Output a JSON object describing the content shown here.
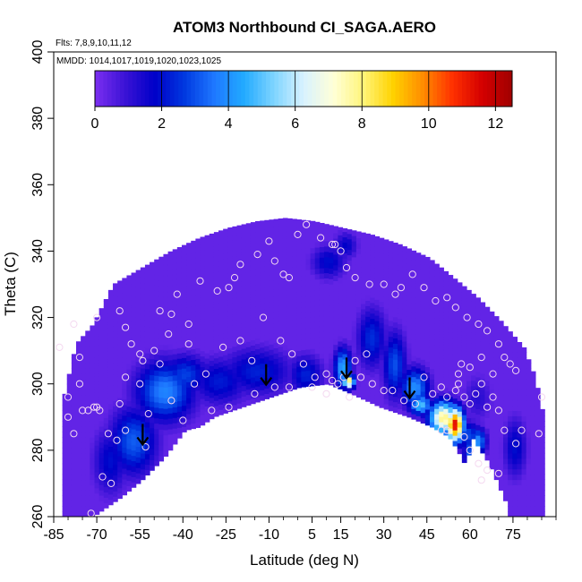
{
  "chart_data": {
    "type": "heatmap",
    "title": "ATOM3 Northbound CI_SAGA.AERO",
    "subtitle_flights": "Flts: 7,8,9,10,11,12",
    "subtitle_dates": "MMDD: 1014,1017,1019,1020,1023,1025",
    "xlabel": "Latitude (deg N)",
    "ylabel": "Theta (C)",
    "xlim": [
      -85,
      90
    ],
    "ylim": [
      260,
      400
    ],
    "x_ticks": [
      "-85",
      "-70",
      "-55",
      "-40",
      "-25",
      "-10",
      "5",
      "15",
      "30",
      "45",
      "60",
      "75"
    ],
    "y_ticks": [
      "260",
      "280",
      "300",
      "320",
      "340",
      "360",
      "380",
      "400"
    ],
    "colorbar": {
      "range": [
        0,
        12.5
      ],
      "tick_labels": [
        "0",
        "2",
        "4",
        "6",
        "8",
        "10",
        "12"
      ],
      "colors": [
        "#7b2ff0",
        "#3b13d6",
        "#0000c8",
        "#0038e0",
        "#1e78ff",
        "#22aaff",
        "#7ed4ff",
        "#d8f2ff",
        "#ffffd8",
        "#fff57a",
        "#ffd200",
        "#ff8c00",
        "#ff3000",
        "#d40000",
        "#a00000"
      ]
    },
    "domain_top": [
      [
        -82,
        297
      ],
      [
        -78,
        312
      ],
      [
        -72,
        318
      ],
      [
        -65,
        330
      ],
      [
        -55,
        335
      ],
      [
        -45,
        340
      ],
      [
        -35,
        344
      ],
      [
        -25,
        347
      ],
      [
        -15,
        349
      ],
      [
        -5,
        350
      ],
      [
        5,
        349
      ],
      [
        15,
        347
      ],
      [
        25,
        345
      ],
      [
        35,
        342
      ],
      [
        45,
        338
      ],
      [
        55,
        331
      ],
      [
        62,
        326
      ],
      [
        70,
        319
      ],
      [
        78,
        311
      ],
      [
        82,
        302
      ],
      [
        85,
        290
      ]
    ],
    "domain_bottom": [
      [
        -72,
        260
      ],
      [
        -62,
        266
      ],
      [
        -55,
        271
      ],
      [
        -47,
        278
      ],
      [
        -40,
        286
      ],
      [
        -35,
        287
      ],
      [
        -30,
        290
      ],
      [
        -20,
        293
      ],
      [
        -10,
        296
      ],
      [
        0,
        299
      ],
      [
        10,
        300
      ],
      [
        18,
        297
      ],
      [
        28,
        293
      ],
      [
        38,
        290
      ],
      [
        46,
        287
      ],
      [
        52,
        284
      ],
      [
        55,
        280
      ],
      [
        58,
        275
      ],
      [
        60,
        284
      ],
      [
        63,
        280
      ],
      [
        66,
        276
      ],
      [
        69,
        270
      ],
      [
        73,
        262
      ]
    ],
    "hotspots": [
      {
        "lat": 54,
        "theta": 287,
        "value": 11.5,
        "sx": 3,
        "sy": 5
      },
      {
        "lat": 50,
        "theta": 289,
        "value": 8,
        "sx": 5,
        "sy": 5
      },
      {
        "lat": 58,
        "theta": 284,
        "value": 3,
        "sx": 5,
        "sy": 4
      },
      {
        "lat": 60,
        "theta": 278,
        "value": 3.5,
        "sx": 3,
        "sy": 8
      },
      {
        "lat": 62,
        "theta": 282,
        "value": 4,
        "sx": 3,
        "sy": 4
      },
      {
        "lat": 17,
        "theta": 300,
        "value": 8.5,
        "sx": 2,
        "sy": 2
      },
      {
        "lat": 15,
        "theta": 304,
        "value": 4.5,
        "sx": 3,
        "sy": 6
      },
      {
        "lat": 25,
        "theta": 313,
        "value": 2.5,
        "sx": 5,
        "sy": 9
      },
      {
        "lat": 33,
        "theta": 305,
        "value": 3,
        "sx": 4,
        "sy": 10
      },
      {
        "lat": 40,
        "theta": 298,
        "value": 4,
        "sx": 5,
        "sy": 6
      },
      {
        "lat": 42,
        "theta": 293,
        "value": 5,
        "sx": 4,
        "sy": 3
      },
      {
        "lat": -47,
        "theta": 297,
        "value": 3.8,
        "sx": 10,
        "sy": 9
      },
      {
        "lat": -40,
        "theta": 302,
        "value": 2.8,
        "sx": 8,
        "sy": 6
      },
      {
        "lat": -58,
        "theta": 282,
        "value": 3.2,
        "sx": 8,
        "sy": 10
      },
      {
        "lat": -66,
        "theta": 276,
        "value": 2,
        "sx": 6,
        "sy": 10
      },
      {
        "lat": -15,
        "theta": 303,
        "value": 2.3,
        "sx": 12,
        "sy": 7
      },
      {
        "lat": -28,
        "theta": 300,
        "value": 2.2,
        "sx": 10,
        "sy": 7
      },
      {
        "lat": 2,
        "theta": 302,
        "value": 2.3,
        "sx": 6,
        "sy": 6
      },
      {
        "lat": 10,
        "theta": 336,
        "value": 2,
        "sx": 6,
        "sy": 5
      },
      {
        "lat": 16,
        "theta": 341,
        "value": 1.8,
        "sx": 4,
        "sy": 4
      },
      {
        "lat": 62,
        "theta": 295,
        "value": 1.2,
        "sx": 5,
        "sy": 7
      },
      {
        "lat": 75,
        "theta": 280,
        "value": 2,
        "sx": 4,
        "sy": 9
      }
    ],
    "sample_points": [
      [
        -83,
        311
      ],
      [
        -80,
        296
      ],
      [
        -78,
        285
      ],
      [
        -75,
        292
      ],
      [
        -73,
        292
      ],
      [
        -71,
        293
      ],
      [
        -68,
        272
      ],
      [
        -65,
        270
      ],
      [
        -63,
        283
      ],
      [
        -60,
        286
      ],
      [
        -53,
        281
      ],
      [
        -72,
        261
      ],
      [
        -70,
        293
      ],
      [
        -62,
        294
      ],
      [
        -76,
        308
      ],
      [
        -78,
        318
      ],
      [
        -70,
        320
      ],
      [
        -62,
        322
      ],
      [
        -55,
        309
      ],
      [
        -50,
        310
      ],
      [
        -45,
        315
      ],
      [
        -38,
        318
      ],
      [
        -34,
        331
      ],
      [
        -28,
        328
      ],
      [
        -24,
        329
      ],
      [
        -22,
        332
      ],
      [
        -20,
        336
      ],
      [
        -14,
        339
      ],
      [
        -10,
        343
      ],
      [
        -8,
        337
      ],
      [
        -5,
        333
      ],
      [
        -3,
        332
      ],
      [
        0,
        345
      ],
      [
        3,
        348
      ],
      [
        8,
        344
      ],
      [
        12,
        342
      ],
      [
        13,
        342
      ],
      [
        15,
        340
      ],
      [
        17,
        335
      ],
      [
        20,
        332
      ],
      [
        25,
        330
      ],
      [
        30,
        330
      ],
      [
        34,
        327
      ],
      [
        36,
        329
      ],
      [
        40,
        333
      ],
      [
        44,
        329
      ],
      [
        48,
        325
      ],
      [
        52,
        326
      ],
      [
        55,
        323
      ],
      [
        59,
        320
      ],
      [
        63,
        318
      ],
      [
        66,
        316
      ],
      [
        70,
        312
      ],
      [
        72,
        308
      ],
      [
        74,
        306
      ],
      [
        76,
        304
      ],
      [
        -48,
        322
      ],
      [
        -44,
        321
      ],
      [
        -42,
        327
      ],
      [
        -38,
        312
      ],
      [
        -32,
        303
      ],
      [
        -26,
        311
      ],
      [
        -20,
        313
      ],
      [
        -16,
        307
      ],
      [
        -12,
        320
      ],
      [
        -6,
        313
      ],
      [
        -2,
        309
      ],
      [
        2,
        306
      ],
      [
        6,
        302
      ],
      [
        10,
        297
      ],
      [
        12,
        301
      ],
      [
        14,
        300
      ],
      [
        16,
        302
      ],
      [
        18,
        296
      ],
      [
        22,
        302
      ],
      [
        26,
        300
      ],
      [
        30,
        298
      ],
      [
        33,
        298
      ],
      [
        37,
        295
      ],
      [
        41,
        294
      ],
      [
        44,
        302
      ],
      [
        47,
        297
      ],
      [
        50,
        299
      ],
      [
        52,
        296
      ],
      [
        55,
        298
      ],
      [
        56,
        300
      ],
      [
        57,
        306
      ],
      [
        58,
        296
      ],
      [
        60,
        294
      ],
      [
        62,
        297
      ],
      [
        64,
        300
      ],
      [
        66,
        293
      ],
      [
        68,
        296
      ],
      [
        70,
        292
      ],
      [
        72,
        286
      ],
      [
        76,
        282
      ],
      [
        78,
        286
      ],
      [
        84,
        285
      ],
      [
        85,
        296
      ],
      [
        63,
        276
      ],
      [
        64,
        271
      ],
      [
        66,
        274
      ],
      [
        70,
        273
      ],
      [
        52,
        286
      ],
      [
        50,
        286
      ],
      [
        58,
        284
      ],
      [
        60,
        280
      ],
      [
        -48,
        306
      ],
      [
        -54,
        307
      ],
      [
        -58,
        312
      ],
      [
        -60,
        317
      ],
      [
        -55,
        300
      ],
      [
        -40,
        289
      ],
      [
        -30,
        292
      ],
      [
        -24,
        293
      ],
      [
        -15,
        297
      ],
      [
        -8,
        299
      ],
      [
        -3,
        299
      ],
      [
        5,
        299
      ],
      [
        10,
        303
      ],
      [
        20,
        307
      ],
      [
        24,
        309
      ],
      [
        -66,
        285
      ],
      [
        -69,
        292
      ],
      [
        -80,
        290
      ],
      [
        -76,
        300
      ],
      [
        -52,
        291
      ],
      [
        -44,
        295
      ],
      [
        -36,
        300
      ],
      [
        -60,
        302
      ],
      [
        56,
        303
      ],
      [
        60,
        305
      ],
      [
        64,
        308
      ],
      [
        68,
        303
      ]
    ],
    "arrows": [
      [
        -54,
        282
      ],
      [
        -11,
        300
      ],
      [
        17,
        302
      ],
      [
        39,
        296
      ]
    ],
    "sample_point_color": "#f4d8f0",
    "arrow_color": "#000000"
  }
}
